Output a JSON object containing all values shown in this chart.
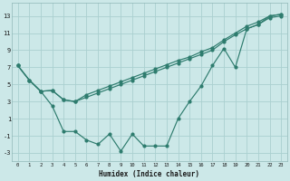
{
  "xlabel": "Humidex (Indice chaleur)",
  "background_color": "#cce8e8",
  "grid_color": "#aad0d0",
  "line_color": "#2e7c6e",
  "xlim": [
    -0.5,
    23.5
  ],
  "ylim": [
    -4,
    14.5
  ],
  "ytick_values": [
    -3,
    -1,
    1,
    3,
    5,
    7,
    9,
    11,
    13
  ],
  "line1_y": [
    7.2,
    5.5,
    4.2,
    4.3,
    3.2,
    3.0,
    3.8,
    4.3,
    4.8,
    5.3,
    5.8,
    6.3,
    6.8,
    7.3,
    7.8,
    8.2,
    8.8,
    9.3,
    10.2,
    11.0,
    11.8,
    12.3,
    13.0,
    13.2
  ],
  "line2_y": [
    7.2,
    5.5,
    4.2,
    4.3,
    3.2,
    3.0,
    3.5,
    4.0,
    4.5,
    5.0,
    5.5,
    6.0,
    6.5,
    7.0,
    7.5,
    8.0,
    8.5,
    9.0,
    10.0,
    10.8,
    11.5,
    12.0,
    12.8,
    13.0
  ],
  "line3_y": [
    7.2,
    5.5,
    4.2,
    2.5,
    -0.5,
    -0.5,
    -1.5,
    -2.0,
    -0.8,
    -2.8,
    -0.8,
    -2.2,
    -2.2,
    -2.2,
    1.0,
    3.0,
    4.8,
    7.2,
    9.2,
    7.0,
    11.5,
    12.0,
    13.0,
    13.2
  ]
}
